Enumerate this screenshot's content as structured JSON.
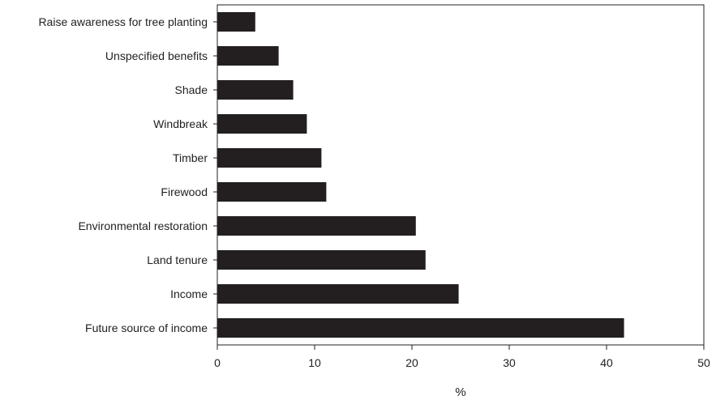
{
  "chart_data": {
    "type": "bar",
    "orientation": "horizontal",
    "categories": [
      "Raise awareness for tree planting",
      "Unspecified benefits",
      "Shade",
      "Windbreak",
      "Timber",
      "Firewood",
      "Environmental restoration",
      "Land tenure",
      "Income",
      "Future source of income"
    ],
    "values": [
      3.9,
      6.3,
      7.8,
      9.2,
      10.7,
      11.2,
      20.4,
      21.4,
      24.8,
      41.8
    ],
    "title": "",
    "xlabel": "%",
    "ylabel": "",
    "xlim": [
      0,
      50
    ],
    "xticks": [
      0,
      10,
      20,
      30,
      40,
      50
    ],
    "grid": false,
    "legend": "none",
    "bar_color": "#231f20"
  }
}
